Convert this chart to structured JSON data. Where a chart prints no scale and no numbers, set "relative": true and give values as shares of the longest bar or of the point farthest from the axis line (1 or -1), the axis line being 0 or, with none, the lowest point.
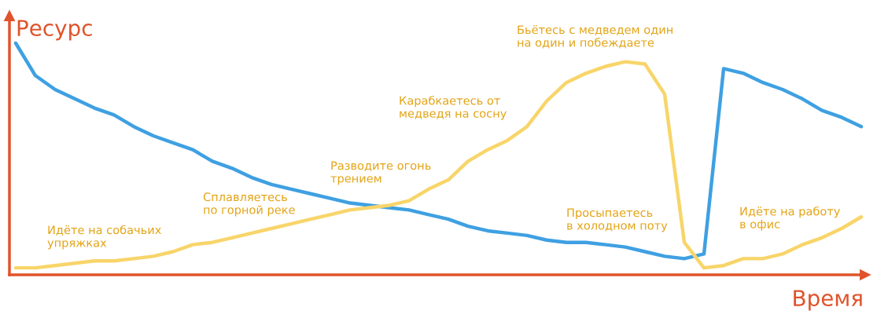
{
  "chart_data": {
    "type": "line",
    "relative": true,
    "xlabel": "Время",
    "ylabel": "Ресурс",
    "categories": [
      null,
      null,
      null,
      null,
      null,
      null,
      null,
      null,
      null,
      null,
      null,
      null,
      null,
      null,
      null,
      null,
      null,
      null,
      null,
      null,
      null,
      null,
      null,
      null,
      null,
      null,
      null,
      null,
      null,
      null,
      null,
      null,
      null,
      null,
      null,
      null,
      null,
      null,
      null,
      null,
      null,
      null,
      null,
      null
    ],
    "series": [
      {
        "color": "#3fa0e2",
        "values": [
          1.0,
          0.86,
          0.8,
          0.76,
          0.72,
          0.69,
          0.64,
          0.6,
          0.57,
          0.54,
          0.49,
          0.46,
          0.42,
          0.39,
          0.37,
          0.35,
          0.33,
          0.31,
          0.3,
          0.29,
          0.28,
          0.26,
          0.24,
          0.21,
          0.19,
          0.18,
          0.17,
          0.15,
          0.14,
          0.14,
          0.13,
          0.12,
          0.1,
          0.08,
          0.07,
          0.09,
          0.89,
          0.87,
          0.83,
          0.8,
          0.76,
          0.71,
          0.68,
          0.64
        ]
      },
      {
        "color": "#f8d56a",
        "values": [
          0.03,
          0.03,
          0.04,
          0.05,
          0.06,
          0.06,
          0.07,
          0.08,
          0.1,
          0.13,
          0.14,
          0.16,
          0.18,
          0.2,
          0.22,
          0.24,
          0.26,
          0.28,
          0.29,
          0.3,
          0.32,
          0.37,
          0.41,
          0.49,
          0.54,
          0.58,
          0.64,
          0.75,
          0.83,
          0.87,
          0.9,
          0.92,
          0.91,
          0.78,
          0.14,
          0.03,
          0.04,
          0.07,
          0.07,
          0.09,
          0.13,
          0.16,
          0.2,
          0.25
        ]
      }
    ],
    "annotations": [
      "Идёте на собачьих\nупряжках",
      "Сплавляетесь\nпо горной реке",
      "Разводите огонь\nтрением",
      "Карабкаетесь от\nмедведя на сосну",
      "Бьётесь с медведем один\nна один и побеждаете",
      "Просыпаетесь\nв холодном поту",
      "Идёте на работу\nв офис"
    ],
    "legend": false,
    "marker": "none",
    "line_style": "solid"
  }
}
